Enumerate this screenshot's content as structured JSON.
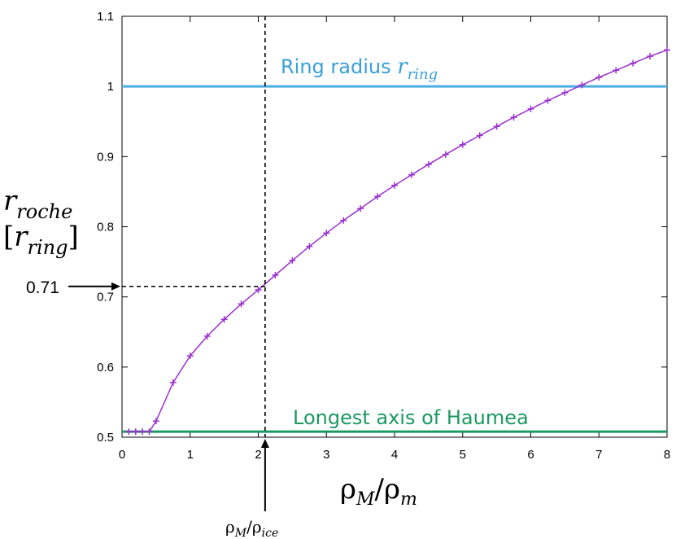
{
  "chart_data": {
    "type": "line",
    "x_ticks": [
      "0",
      "1",
      "2",
      "3",
      "4",
      "5",
      "6",
      "7",
      "8"
    ],
    "y_ticks": [
      "0.5",
      "0.6",
      "0.7",
      "0.8",
      "0.9",
      "1",
      "1.1"
    ],
    "xlim": [
      0,
      8
    ],
    "ylim": [
      0.5,
      1.1
    ],
    "grid": false,
    "series": [
      {
        "color": "#9b30d0",
        "marker": "+",
        "x": [
          0.1,
          0.2,
          0.3,
          0.4,
          0.5,
          0.75,
          1.0,
          1.25,
          1.5,
          1.75,
          2.0,
          2.25,
          2.5,
          2.75,
          3.0,
          3.25,
          3.5,
          3.75,
          4.0,
          4.25,
          4.5,
          4.75,
          5.0,
          5.25,
          5.5,
          5.75,
          6.0,
          6.25,
          6.5,
          6.75,
          7.0,
          7.25,
          7.5,
          7.75,
          8.0
        ],
        "y": [
          0.508,
          0.508,
          0.508,
          0.508,
          0.523,
          0.578,
          0.616,
          0.644,
          0.668,
          0.69,
          0.71,
          0.731,
          0.752,
          0.772,
          0.791,
          0.809,
          0.826,
          0.843,
          0.859,
          0.874,
          0.889,
          0.903,
          0.917,
          0.93,
          0.943,
          0.956,
          0.968,
          0.98,
          0.991,
          1.002,
          1.013,
          1.023,
          1.033,
          1.043,
          1.052
        ]
      }
    ],
    "hlines": [
      {
        "y": 1.0,
        "color": "#4aaee0"
      },
      {
        "y": 0.508,
        "color": "#1a9960"
      }
    ],
    "ring_label": {
      "text": "Ring radius ",
      "math_base": "r",
      "math_sub": "ring",
      "color": "#3aa0d8"
    },
    "haumea_label": {
      "text": "Longest axis of Haumea",
      "color": "#1a9960"
    },
    "ylabel": {
      "line1_base": "r",
      "line1_sub": "roche",
      "line2_open": "[",
      "line2_base": "r",
      "line2_sub": "ring",
      "line2_close": "]"
    },
    "xlabel": {
      "base1": "ρ",
      "sub1": "M",
      "slash": "/",
      "base2": "ρ",
      "sub2": "m"
    },
    "marker_x": {
      "value": 2.1,
      "base1": "ρ",
      "sub1": "M",
      "slash": "/",
      "base2": "ρ",
      "sub2": "ice"
    },
    "marker_y": {
      "value": 0.715,
      "label": "0.71"
    }
  }
}
